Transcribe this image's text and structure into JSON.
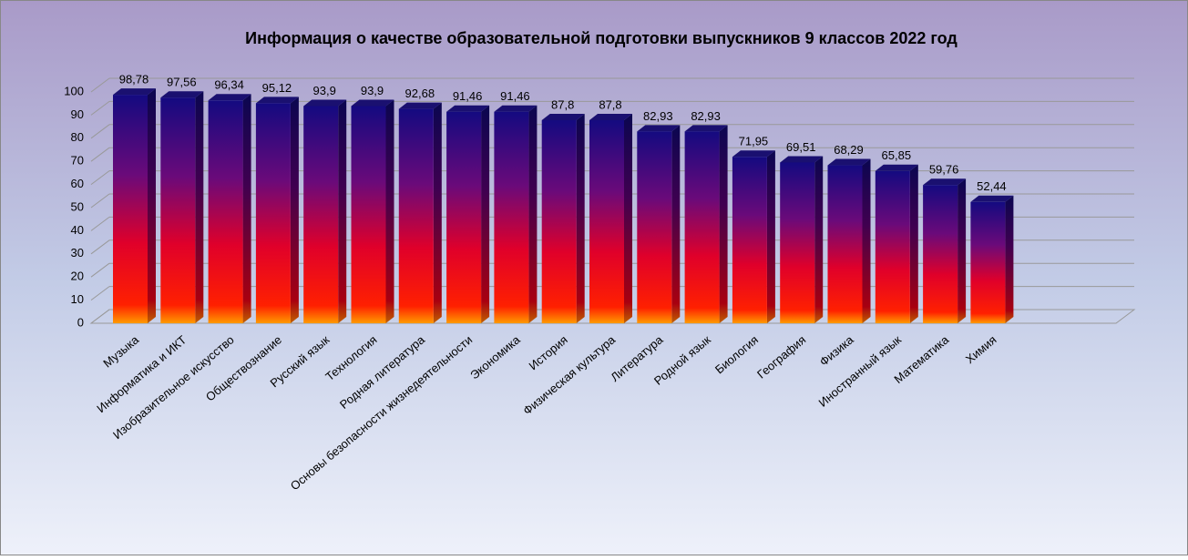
{
  "chart_data": {
    "type": "bar3d",
    "title": "Информация о качестве образовательной подготовки выпускников 9 классов 2022 год",
    "categories": [
      "Музыка",
      "Информатика и ИКТ",
      "Изобразительное искусство",
      "Обществознание",
      "Русский язык",
      "Технология",
      "Родная литература",
      "Основы безопасности жизнедеятельности",
      "Экономика",
      "История",
      "Физическая культура",
      "Литература",
      "Родной язык",
      "Биология",
      "География",
      "Физика",
      "Иностранный язык",
      "Математика",
      "Химия"
    ],
    "values": [
      98.78,
      97.56,
      96.34,
      95.12,
      93.9,
      93.9,
      92.68,
      91.46,
      91.46,
      87.8,
      87.8,
      82.93,
      82.93,
      71.95,
      69.51,
      68.29,
      65.85,
      59.76,
      52.44
    ],
    "value_labels": [
      "98,78",
      "97,56",
      "96,34",
      "95,12",
      "93,9",
      "93,9",
      "92,68",
      "91,46",
      "91,46",
      "87,8",
      "87,8",
      "82,93",
      "82,93",
      "71,95",
      "69,51",
      "68,29",
      "65,85",
      "59,76",
      "52,44"
    ],
    "ylim": [
      0,
      100
    ],
    "yticks": [
      0,
      10,
      20,
      30,
      40,
      50,
      60,
      70,
      80,
      90,
      100
    ],
    "grid": true
  }
}
